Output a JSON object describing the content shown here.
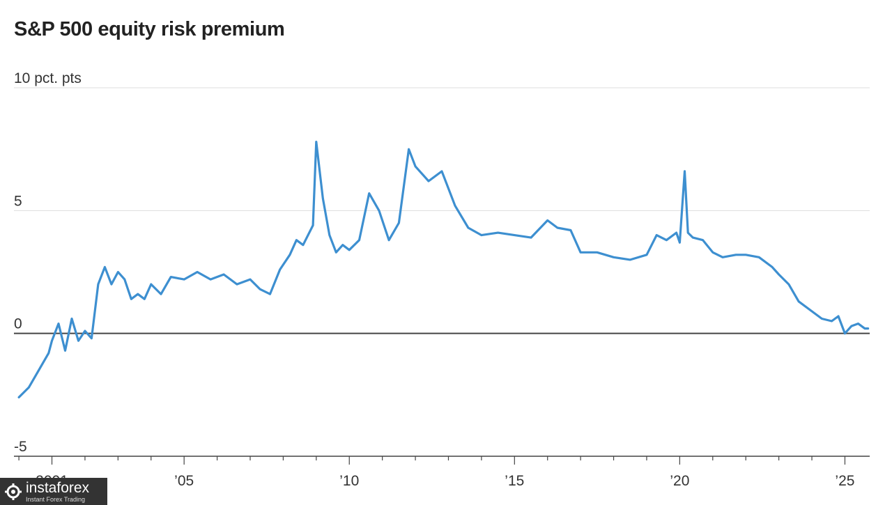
{
  "title": "S&P 500 equity risk premium",
  "watermark": {
    "brand": "instaforex",
    "tagline": "Instant Forex Trading"
  },
  "colors": {
    "line": "#3d8fd0",
    "grid": "#dddddd",
    "zero_line": "#444444",
    "text": "#333333"
  },
  "chart_data": {
    "type": "line",
    "title": "S&P 500 equity risk premium",
    "ylabel": "10 pct. pts",
    "xlabel": "",
    "ylim": [
      -5,
      10
    ],
    "xlim": [
      1999.85,
      2025.75
    ],
    "y_ticks": [
      {
        "value": 10,
        "label": "10 pct. pts"
      },
      {
        "value": 5,
        "label": "5"
      },
      {
        "value": 0,
        "label": "0"
      },
      {
        "value": -5,
        "label": "-5"
      }
    ],
    "x_ticks": [
      {
        "value": 2001,
        "label": "2001"
      },
      {
        "value": 2005,
        "label": "’05"
      },
      {
        "value": 2010,
        "label": "’10"
      },
      {
        "value": 2015,
        "label": "’15"
      },
      {
        "value": 2020,
        "label": "’20"
      },
      {
        "value": 2025,
        "label": "’25"
      }
    ],
    "grid": true,
    "series": [
      {
        "x": [
          2000.0,
          2000.3,
          2000.6,
          2000.9,
          2001.0,
          2001.2,
          2001.4,
          2001.6,
          2001.8,
          2002.0,
          2002.2,
          2002.4,
          2002.6,
          2002.8,
          2003.0,
          2003.2,
          2003.4,
          2003.6,
          2003.8,
          2004.0,
          2004.3,
          2004.6,
          2005.0,
          2005.4,
          2005.8,
          2006.2,
          2006.6,
          2007.0,
          2007.3,
          2007.6,
          2007.9,
          2008.2,
          2008.4,
          2008.6,
          2008.9,
          2009.0,
          2009.2,
          2009.4,
          2009.6,
          2009.8,
          2010.0,
          2010.3,
          2010.6,
          2010.9,
          2011.2,
          2011.5,
          2011.8,
          2012.0,
          2012.4,
          2012.8,
          2013.2,
          2013.6,
          2014.0,
          2014.5,
          2015.0,
          2015.5,
          2016.0,
          2016.3,
          2016.7,
          2017.0,
          2017.5,
          2018.0,
          2018.5,
          2019.0,
          2019.3,
          2019.6,
          2019.9,
          2020.0,
          2020.15,
          2020.25,
          2020.4,
          2020.7,
          2021.0,
          2021.3,
          2021.7,
          2022.0,
          2022.4,
          2022.8,
          2023.0,
          2023.3,
          2023.6,
          2024.0,
          2024.3,
          2024.6,
          2024.8,
          2025.0,
          2025.2,
          2025.4,
          2025.6,
          2025.7
        ],
        "values": [
          -2.6,
          -2.2,
          -1.5,
          -0.8,
          -0.3,
          0.4,
          -0.7,
          0.6,
          -0.3,
          0.1,
          -0.2,
          2.0,
          2.7,
          2.0,
          2.5,
          2.2,
          1.4,
          1.6,
          1.4,
          2.0,
          1.6,
          2.3,
          2.2,
          2.5,
          2.2,
          2.4,
          2.0,
          2.2,
          1.8,
          1.6,
          2.6,
          3.2,
          3.8,
          3.6,
          4.4,
          7.8,
          5.5,
          4.0,
          3.3,
          3.6,
          3.4,
          3.8,
          5.7,
          5.0,
          3.8,
          4.5,
          7.5,
          6.8,
          6.2,
          6.6,
          5.2,
          4.3,
          4.0,
          4.1,
          4.0,
          3.9,
          4.6,
          4.3,
          4.2,
          3.3,
          3.3,
          3.1,
          3.0,
          3.2,
          4.0,
          3.8,
          4.1,
          3.7,
          6.6,
          4.1,
          3.9,
          3.8,
          3.3,
          3.1,
          3.2,
          3.2,
          3.1,
          2.7,
          2.4,
          2.0,
          1.3,
          0.9,
          0.6,
          0.5,
          0.7,
          0.0,
          0.3,
          0.4,
          0.2,
          0.2
        ]
      }
    ]
  }
}
